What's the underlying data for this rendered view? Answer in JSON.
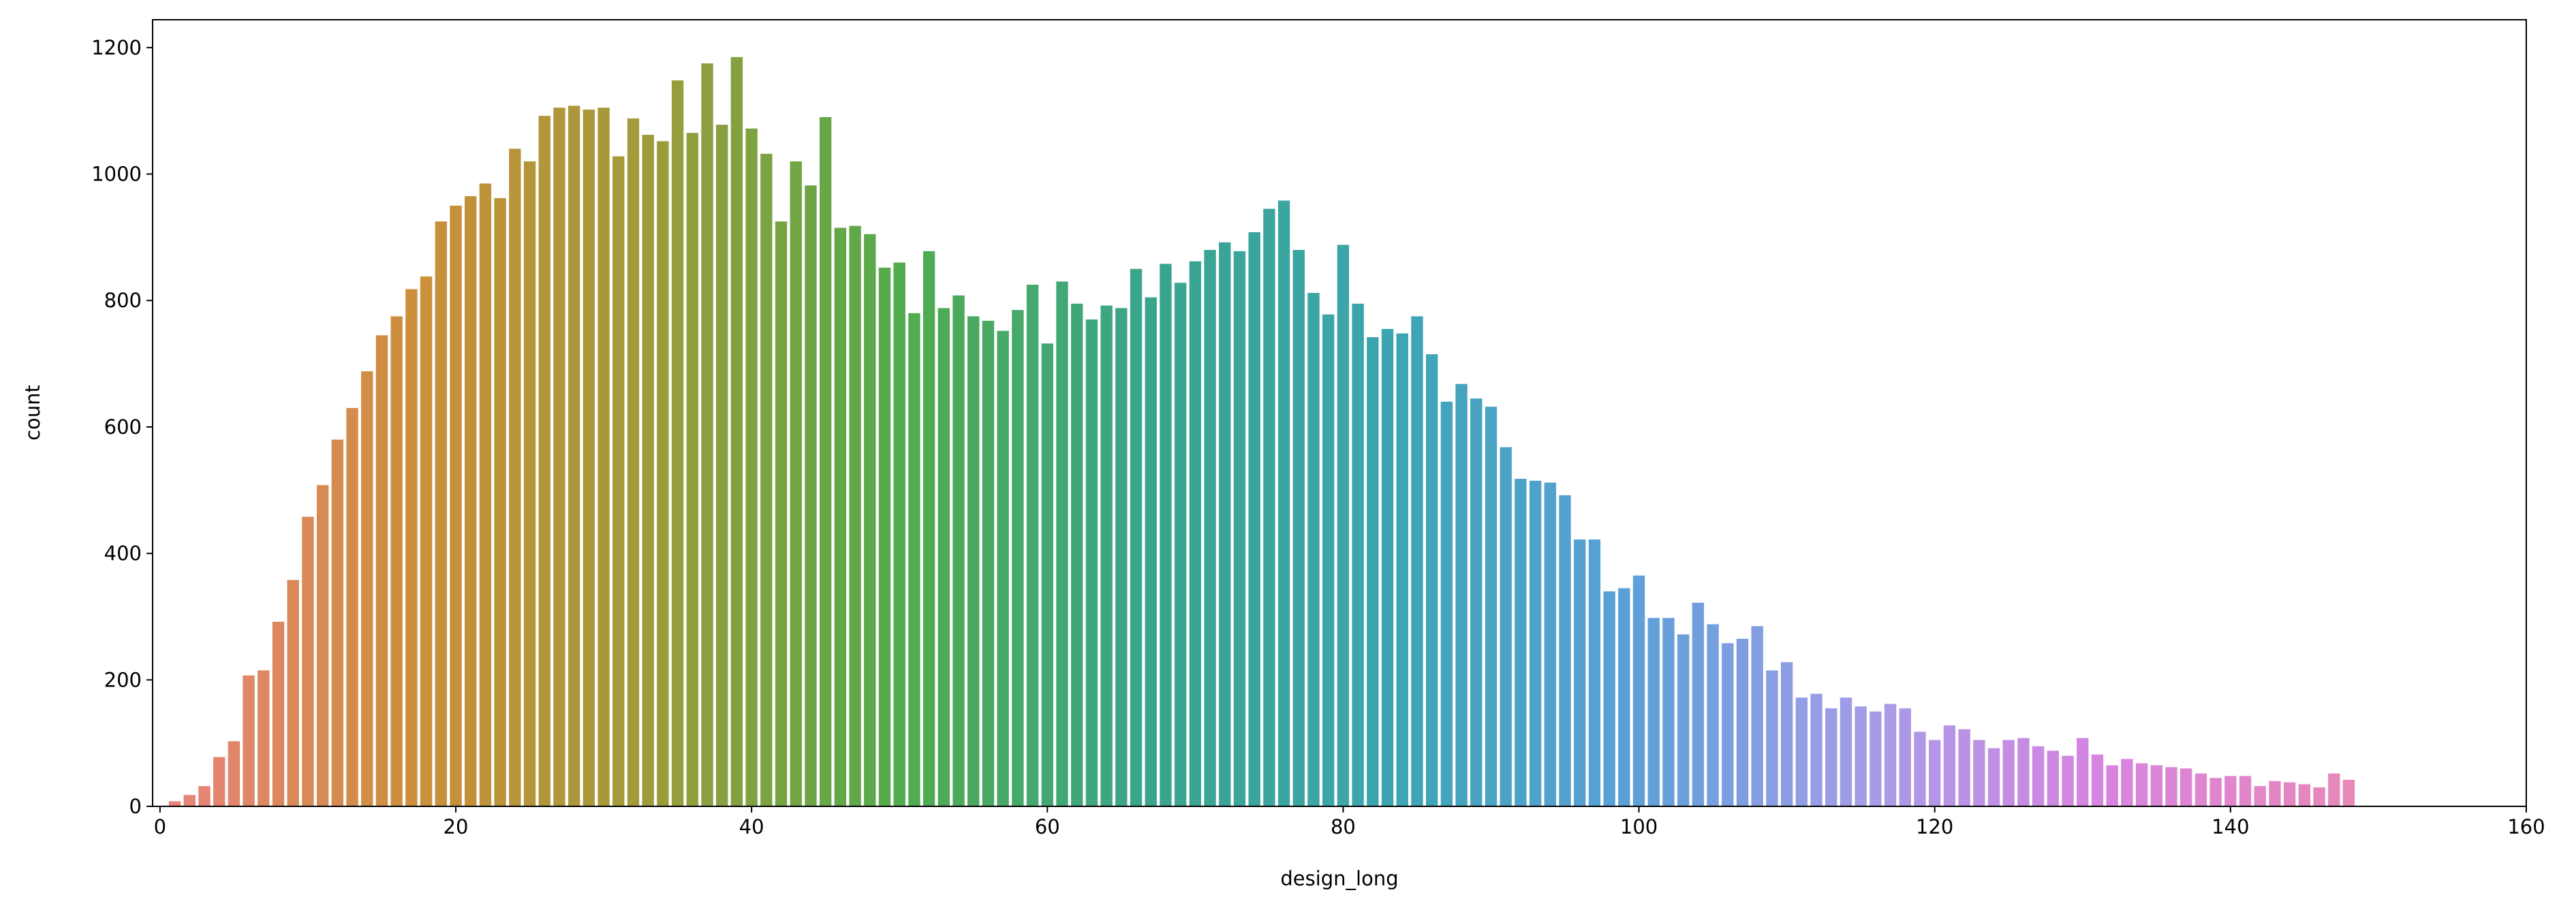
{
  "chart_data": {
    "type": "bar",
    "x_label": "design_long",
    "y_label": "count",
    "x": [
      1,
      2,
      3,
      4,
      5,
      6,
      7,
      8,
      9,
      10,
      11,
      12,
      13,
      14,
      15,
      16,
      17,
      18,
      19,
      20,
      21,
      22,
      23,
      24,
      25,
      26,
      27,
      28,
      29,
      30,
      31,
      32,
      33,
      34,
      35,
      36,
      37,
      38,
      39,
      40,
      41,
      42,
      43,
      44,
      45,
      46,
      47,
      48,
      49,
      50,
      51,
      52,
      53,
      54,
      55,
      56,
      57,
      58,
      59,
      60,
      61,
      62,
      63,
      64,
      65,
      66,
      67,
      68,
      69,
      70,
      71,
      72,
      73,
      74,
      75,
      76,
      77,
      78,
      79,
      80,
      81,
      82,
      83,
      84,
      85,
      86,
      87,
      88,
      89,
      90,
      91,
      92,
      93,
      94,
      95,
      96,
      97,
      98,
      99,
      100,
      101,
      102,
      103,
      104,
      105,
      106,
      107,
      108,
      109,
      110,
      111,
      112,
      113,
      114,
      115,
      116,
      117,
      118,
      119,
      120,
      121,
      122,
      123,
      124,
      125,
      126,
      127,
      128,
      129,
      130,
      131,
      132,
      133,
      134,
      135,
      136,
      137,
      138,
      139,
      140,
      141,
      142,
      143,
      144,
      145,
      146,
      147,
      148
    ],
    "values": [
      8,
      18,
      32,
      78,
      103,
      207,
      215,
      292,
      358,
      458,
      508,
      580,
      630,
      688,
      745,
      775,
      818,
      838,
      925,
      950,
      965,
      985,
      962,
      1040,
      1020,
      1092,
      1105,
      1108,
      1102,
      1105,
      1028,
      1088,
      1062,
      1052,
      1148,
      1065,
      1175,
      1078,
      1185,
      1072,
      1032,
      925,
      1020,
      982,
      1090,
      915,
      918,
      905,
      852,
      860,
      780,
      878,
      788,
      808,
      775,
      768,
      752,
      785,
      825,
      732,
      830,
      795,
      770,
      792,
      788,
      850,
      805,
      858,
      828,
      862,
      880,
      892,
      878,
      908,
      945,
      958,
      880,
      812,
      778,
      888,
      795,
      742,
      755,
      748,
      775,
      715,
      640,
      668,
      645,
      632,
      568,
      518,
      515,
      512,
      492,
      422,
      422,
      340,
      345,
      365,
      298,
      298,
      272,
      322,
      288,
      258,
      265,
      285,
      215,
      228,
      172,
      178,
      155,
      172,
      158,
      150,
      162,
      155,
      118,
      105,
      128,
      122,
      105,
      92,
      105,
      108,
      95,
      88,
      80,
      108,
      82,
      65,
      75,
      68,
      65,
      62,
      60,
      52,
      45,
      48,
      48,
      32,
      40,
      38,
      35,
      30,
      52,
      42
    ],
    "palette": [
      "#e8837a",
      "#cc8f3a",
      "#9c9c3a",
      "#52ab4c",
      "#3aa58a",
      "#3ba5b0",
      "#5aa0d8",
      "#a59ce8",
      "#d884e0",
      "#e888b8"
    ],
    "xlim": [
      -0.5,
      160
    ],
    "xticks": [
      0,
      20,
      40,
      60,
      80,
      100,
      120,
      140,
      160
    ],
    "ylim": [
      0,
      1244
    ],
    "yticks": [
      0,
      200,
      400,
      600,
      800,
      1000,
      1200
    ]
  }
}
